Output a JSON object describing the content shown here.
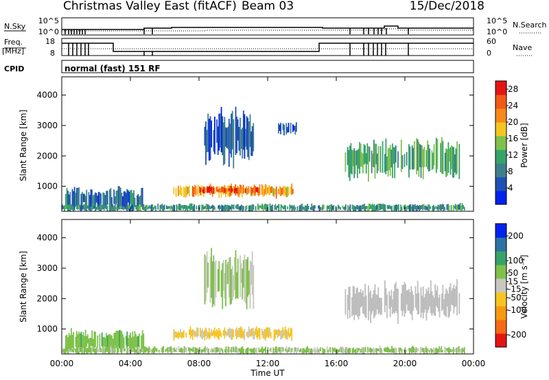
{
  "header": {
    "title": "Christmas Valley East (fitACF)",
    "beam": "Beam 03",
    "date": "15/Dec/2018"
  },
  "strip": {
    "nsky_label": "N.Sky",
    "nsky_ticks": [
      "10^5",
      "10^0"
    ],
    "nsearch_label": "N.Search",
    "nsearch_ticks": [
      "10^5",
      "10^0"
    ],
    "freq_label": "Freq.",
    "freq_unit": "[MHz]",
    "freq_ticks": [
      "18",
      "8"
    ],
    "nave_label": "Nave",
    "nave_ticks": [
      "60",
      "0"
    ],
    "cpid_label": "CPID",
    "cpid_value": "normal (fast) 151 RF"
  },
  "colors": {
    "power_scale": [
      "#0022ee",
      "#1e4fb5",
      "#3f7f8c",
      "#36a36a",
      "#7ec14a",
      "#f6c523",
      "#f6891a",
      "#f05a16",
      "#e31512"
    ],
    "velocity_scale": [
      "#e31512",
      "#f56a14",
      "#f69a15",
      "#f6c523",
      "#c8c8c0",
      "#7ec14a",
      "#36a36a",
      "#2d72a4",
      "#0022ee"
    ],
    "ground_scatter": "#bdbdbd"
  },
  "chart_data": [
    {
      "type": "heatmap",
      "name": "power",
      "xlabel": "",
      "ylabel": "Slant Range [km]",
      "x_ticks": [
        "00:00",
        "04:00",
        "08:00",
        "12:00",
        "16:00",
        "20:00",
        "00:00"
      ],
      "xlim_hours": [
        0,
        24
      ],
      "y_ticks": [
        1000,
        2000,
        3000,
        4000
      ],
      "ylim": [
        180,
        4600
      ],
      "colorbar_label": "Power [dB]",
      "colorbar_ticks": [
        4,
        8,
        12,
        16,
        20,
        24,
        28
      ],
      "colorbar_range": [
        0,
        30
      ],
      "echo_regions": [
        {
          "t": [
            0.2,
            4.8
          ],
          "range": [
            180,
            950
          ],
          "level": 7
        },
        {
          "t": [
            6.5,
            13.5
          ],
          "range": [
            650,
            1050
          ],
          "level": 20
        },
        {
          "t": [
            8.0,
            11.5
          ],
          "range": [
            750,
            1000
          ],
          "level": 26
        },
        {
          "t": [
            8.3,
            11.2
          ],
          "range": [
            1800,
            3450
          ],
          "level": 6
        },
        {
          "t": [
            12.6,
            13.7
          ],
          "range": [
            2700,
            3100
          ],
          "level": 6
        },
        {
          "t": [
            16.5,
            23.2
          ],
          "range": [
            1300,
            2500
          ],
          "level": 12
        },
        {
          "t": [
            0.0,
            23.5
          ],
          "range": [
            180,
            420
          ],
          "level": 10
        }
      ]
    },
    {
      "type": "heatmap",
      "name": "velocity",
      "xlabel": "Time UT",
      "ylabel": "Slant Range [km]",
      "x_ticks": [
        "00:00",
        "04:00",
        "08:00",
        "12:00",
        "16:00",
        "20:00",
        "00:00"
      ],
      "xlim_hours": [
        0,
        24
      ],
      "y_ticks": [
        1000,
        2000,
        3000,
        4000
      ],
      "ylim": [
        180,
        4600
      ],
      "colorbar_label": "Velocity [m s⁻¹]",
      "colorbar_ticks": [
        200,
        100,
        50,
        15,
        -15,
        -50,
        -100,
        -200
      ],
      "colorbar_range": [
        -250,
        250
      ],
      "echo_regions": [
        {
          "t": [
            0.2,
            4.8
          ],
          "range": [
            180,
            950
          ],
          "velocity": 60
        },
        {
          "t": [
            6.5,
            13.5
          ],
          "range": [
            650,
            1050
          ],
          "velocity": -40
        },
        {
          "t": [
            8.3,
            11.2
          ],
          "range": [
            1800,
            3450
          ],
          "velocity": 30
        },
        {
          "t": [
            16.5,
            23.2
          ],
          "range": [
            1300,
            2500
          ],
          "velocity": 0
        },
        {
          "t": [
            0.0,
            23.5
          ],
          "range": [
            180,
            420
          ],
          "velocity": 40
        }
      ]
    }
  ]
}
